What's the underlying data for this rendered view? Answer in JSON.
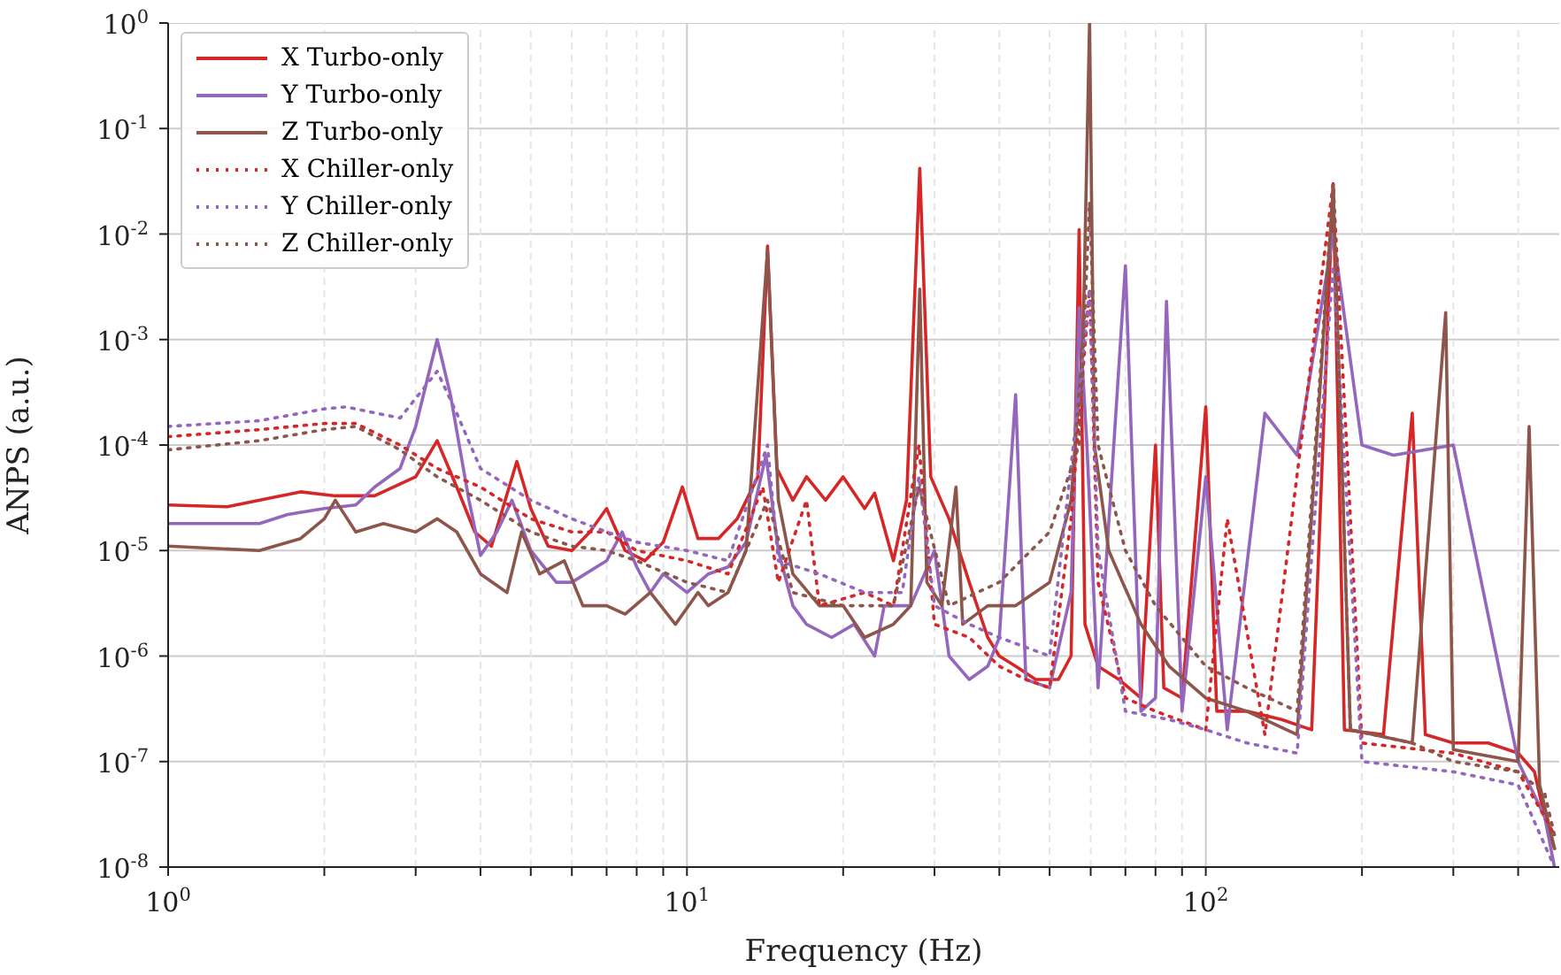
{
  "chart_data": {
    "type": "line",
    "xlabel": "Frequency (Hz)",
    "ylabel": "ANPS (a.u.)",
    "log": "xy",
    "grid": true,
    "legend": "top left",
    "xlim": [
      1,
      480
    ],
    "ylim": [
      1e-08,
      1
    ],
    "xticks": [
      {
        "value": 1,
        "label": "10$^{0}$"
      },
      {
        "value": 2,
        "label": null
      },
      {
        "value": 3,
        "label": null
      },
      {
        "value": 4,
        "label": null
      },
      {
        "value": 5,
        "label": null
      },
      {
        "value": 6,
        "label": null
      },
      {
        "value": 7,
        "label": null
      },
      {
        "value": 8,
        "label": null
      },
      {
        "value": 9,
        "label": null
      },
      {
        "value": 10,
        "label": "10$^{1}$"
      },
      {
        "value": 20,
        "label": null
      },
      {
        "value": 30,
        "label": null
      },
      {
        "value": 40,
        "label": null
      },
      {
        "value": 50,
        "label": null
      },
      {
        "value": 60,
        "label": null
      },
      {
        "value": 70,
        "label": null
      },
      {
        "value": 80,
        "label": null
      },
      {
        "value": 90,
        "label": null
      },
      {
        "value": 100,
        "label": "10$^{2}$"
      },
      {
        "value": 200,
        "label": null
      },
      {
        "value": 300,
        "label": null
      },
      {
        "value": 400,
        "label": null
      }
    ],
    "yticks": [
      {
        "value": 1e-08,
        "label": "10$^{-8}$"
      },
      {
        "value": 1e-07,
        "label": "10$^{-7}$"
      },
      {
        "value": 1e-06,
        "label": "10$^{-6}$"
      },
      {
        "value": 1e-05,
        "label": "10$^{-5}$"
      },
      {
        "value": 0.0001,
        "label": "10$^{-4}$"
      },
      {
        "value": 0.001,
        "label": "10$^{-3}$"
      },
      {
        "value": 0.01,
        "label": "10$^{-2}$"
      },
      {
        "value": 0.1,
        "label": "10$^{-1}$"
      },
      {
        "value": 1,
        "label": "10$^{0}$"
      }
    ],
    "series": [
      {
        "name": "X Turbo-only",
        "color": "#d62728",
        "line_style": "solid",
        "x": [
          1,
          1.3,
          1.6,
          1.8,
          2.1,
          2.5,
          3.0,
          3.3,
          3.6,
          3.9,
          4.2,
          4.7,
          5.0,
          5.4,
          6.0,
          6.5,
          7.0,
          7.6,
          8.3,
          9.0,
          9.8,
          10.5,
          11.5,
          12.5,
          13.7,
          14.3,
          14.9,
          16,
          17,
          18.5,
          20,
          22,
          23,
          25,
          26.5,
          28.1,
          29.5,
          32,
          35,
          38,
          40,
          43,
          47,
          52,
          55,
          57,
          58.5,
          62,
          68,
          75,
          80,
          83,
          90,
          100,
          105,
          120,
          140,
          160,
          176,
          185,
          220,
          250,
          265,
          300,
          350,
          400,
          430,
          450,
          470
        ],
        "values": [
          2.7e-05,
          2.6e-05,
          3.2e-05,
          3.6e-05,
          3.3e-05,
          3.3e-05,
          5e-05,
          0.00011,
          4e-05,
          1.5e-05,
          1.1e-05,
          7e-05,
          2.5e-05,
          1.1e-05,
          1e-05,
          1.5e-05,
          2.5e-05,
          1e-05,
          8e-06,
          1.2e-05,
          4e-05,
          1.3e-05,
          1.3e-05,
          2e-05,
          5e-05,
          0.0077,
          6e-05,
          3e-05,
          5e-05,
          3e-05,
          5e-05,
          2.5e-05,
          3.5e-05,
          8e-06,
          3e-05,
          0.042,
          5e-05,
          2e-05,
          5e-06,
          1.5e-06,
          1e-06,
          8e-07,
          6e-07,
          6e-07,
          1e-06,
          0.011,
          2e-06,
          8e-07,
          6e-07,
          4e-07,
          0.0001,
          5e-07,
          4e-07,
          0.00023,
          3e-07,
          3e-07,
          2.5e-07,
          2e-07,
          0.03,
          2e-07,
          1.8e-07,
          0.0002,
          1.8e-07,
          1.5e-07,
          1.5e-07,
          1.2e-07,
          8e-08,
          3e-08,
          1.5e-08
        ]
      },
      {
        "name": "Y Turbo-only",
        "color": "#9467bd",
        "line_style": "solid",
        "x": [
          1,
          1.5,
          1.7,
          2,
          2.3,
          2.5,
          2.8,
          3.0,
          3.3,
          3.5,
          3.8,
          4.0,
          4.3,
          4.6,
          5.0,
          5.6,
          6,
          7,
          7.5,
          8,
          8.5,
          9,
          10,
          11,
          12,
          13,
          14.2,
          15,
          16,
          17,
          19,
          21,
          23,
          24,
          27,
          30,
          32,
          35,
          38,
          40,
          43,
          45,
          50,
          55,
          57,
          59,
          62,
          70,
          75,
          80,
          84,
          90,
          100,
          110,
          130,
          150,
          176,
          200,
          230,
          300,
          400,
          450,
          470
        ],
        "values": [
          1.8e-05,
          1.8e-05,
          2.2e-05,
          2.5e-05,
          2.7e-05,
          4e-05,
          6e-05,
          0.00015,
          0.001,
          0.0003,
          3e-05,
          9e-06,
          1.5e-05,
          3e-05,
          1e-05,
          5e-06,
          5e-06,
          8e-06,
          1.5e-05,
          7e-06,
          4e-06,
          6e-06,
          4e-06,
          6e-06,
          7e-06,
          1.2e-05,
          8e-05,
          1e-05,
          3e-06,
          2e-06,
          1.5e-06,
          2e-06,
          1e-06,
          3e-06,
          3e-06,
          1e-05,
          1e-06,
          6e-07,
          8e-07,
          1.5e-06,
          0.0003,
          6e-07,
          5e-07,
          4e-06,
          0.002,
          0.0001,
          5e-07,
          0.005,
          3e-07,
          4e-07,
          0.0023,
          3e-07,
          5e-05,
          2e-07,
          0.0002,
          8e-05,
          0.01,
          0.0001,
          8e-05,
          0.0001,
          1e-07,
          3e-08,
          1e-08
        ]
      },
      {
        "name": "Z Turbo-only",
        "color": "#8c564b",
        "line_style": "solid",
        "x": [
          1,
          1.5,
          1.8,
          2.0,
          2.1,
          2.3,
          2.6,
          3.0,
          3.3,
          3.6,
          4.0,
          4.5,
          4.8,
          5.2,
          5.8,
          6.3,
          7,
          7.6,
          8.5,
          9.5,
          10.5,
          11,
          12,
          13,
          14.3,
          15,
          16,
          18,
          20,
          22,
          25,
          27,
          28.1,
          29,
          31,
          33,
          34,
          38,
          43,
          50,
          55,
          58,
          59.7,
          61,
          65,
          75,
          85,
          100,
          120,
          150,
          176,
          190,
          250,
          290,
          300,
          400,
          420,
          440,
          470
        ],
        "values": [
          1.1e-05,
          1e-05,
          1.3e-05,
          2e-05,
          3e-05,
          1.5e-05,
          1.8e-05,
          1.5e-05,
          2e-05,
          1.5e-05,
          6e-06,
          4e-06,
          1.5e-05,
          6e-06,
          8e-06,
          3e-06,
          3e-06,
          2.5e-06,
          4e-06,
          2e-06,
          4e-06,
          3e-06,
          4e-06,
          1e-05,
          0.007,
          3e-05,
          6e-06,
          3e-06,
          3e-06,
          1.5e-06,
          2e-06,
          3e-06,
          0.003,
          5e-06,
          3e-06,
          4e-05,
          2e-06,
          3e-06,
          3e-06,
          5e-06,
          3e-05,
          0.001,
          1,
          0.0001,
          1e-05,
          2e-06,
          8e-07,
          4e-07,
          3e-07,
          1.8e-07,
          0.027,
          2e-07,
          1.5e-07,
          0.0018,
          1.3e-07,
          1e-07,
          0.00015,
          6e-08,
          1.5e-08
        ]
      },
      {
        "name": "X Chiller-only",
        "color": "#d62728",
        "line_style": "dotted",
        "x": [
          1,
          1.5,
          2,
          2.3,
          2.8,
          3.3,
          4,
          5,
          6,
          7,
          8,
          10,
          12,
          14,
          15,
          17,
          18,
          22,
          25,
          28,
          30,
          35,
          40,
          45,
          50,
          55,
          59.7,
          62,
          70,
          80,
          100,
          110,
          130,
          176,
          200,
          300,
          400,
          450,
          470
        ],
        "values": [
          0.00012,
          0.00014,
          0.00016,
          0.00016,
          0.0001,
          6e-05,
          4e-05,
          2e-05,
          1.5e-05,
          1.5e-05,
          1e-05,
          8e-06,
          6e-06,
          4e-05,
          5e-06,
          3e-05,
          3e-06,
          4e-06,
          3e-06,
          0.0001,
          2e-06,
          1.5e-06,
          8e-07,
          6e-07,
          5e-07,
          2e-05,
          0.003,
          5e-06,
          4e-07,
          3e-07,
          2e-07,
          2e-05,
          1.8e-07,
          0.03,
          1.5e-07,
          1.2e-07,
          8e-08,
          3e-08,
          2e-08
        ]
      },
      {
        "name": "Y Chiller-only",
        "color": "#9467bd",
        "line_style": "dotted",
        "x": [
          1,
          1.5,
          2,
          2.2,
          2.8,
          3.3,
          3.6,
          4,
          5,
          6,
          7,
          8,
          10,
          12,
          14.3,
          15,
          18,
          22,
          26,
          28,
          30,
          35,
          40,
          50,
          57,
          59.7,
          62,
          70,
          85,
          100,
          120,
          150,
          176,
          200,
          300,
          400,
          470
        ],
        "values": [
          0.00015,
          0.00017,
          0.00022,
          0.00023,
          0.00018,
          0.0005,
          0.0002,
          6e-05,
          3e-05,
          2e-05,
          1.5e-05,
          1.2e-05,
          1e-05,
          8e-06,
          0.0001,
          8e-06,
          6e-06,
          4e-06,
          4e-06,
          5e-05,
          3e-06,
          2e-06,
          1.5e-06,
          1e-06,
          0.0003,
          0.003,
          1e-05,
          3e-07,
          2.5e-07,
          2e-07,
          1.5e-07,
          1.2e-07,
          0.005,
          1e-07,
          8e-08,
          6e-08,
          1e-08
        ]
      },
      {
        "name": "Z Chiller-only",
        "color": "#8c564b",
        "line_style": "dotted",
        "x": [
          1,
          1.5,
          2,
          2.3,
          2.8,
          3.3,
          4,
          5,
          6,
          7,
          8,
          10,
          12,
          14.3,
          16,
          20,
          25,
          28,
          32,
          40,
          50,
          57,
          59.7,
          62,
          70,
          80,
          100,
          120,
          150,
          176,
          190,
          250,
          300,
          400,
          450,
          470
        ],
        "values": [
          9e-05,
          0.00011,
          0.00014,
          0.00015,
          9e-05,
          5e-05,
          3e-05,
          1.5e-05,
          1.1e-05,
          1e-05,
          8e-06,
          5e-06,
          4e-06,
          3e-05,
          4e-06,
          3e-06,
          3e-06,
          4e-05,
          3e-06,
          5e-06,
          1.5e-05,
          0.0001,
          0.02,
          0.0001,
          1e-05,
          3e-06,
          8e-07,
          5e-07,
          3e-07,
          0.03,
          2e-07,
          1.5e-07,
          1e-07,
          8e-08,
          5e-08,
          2e-08
        ]
      }
    ]
  }
}
